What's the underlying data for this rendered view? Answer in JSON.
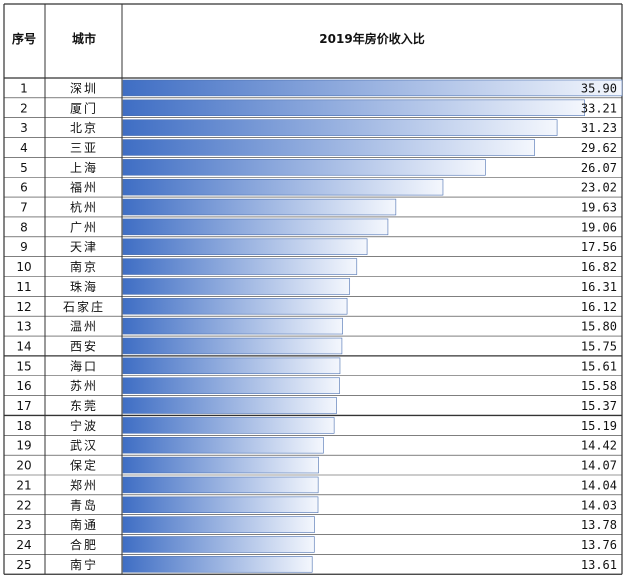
{
  "header": {
    "col_index": "序号",
    "col_city": "城市",
    "col_value": "2019年房价收入比"
  },
  "colors": {
    "bar_dark": "#3f6ec4",
    "bar_light": "#f4f7fd",
    "grid": "#333333"
  },
  "chart_data": {
    "type": "bar",
    "orientation": "horizontal",
    "title": "2019年房价收入比",
    "xlim": [
      0,
      35.9
    ],
    "grid": true,
    "categories": [
      "深圳",
      "厦门",
      "北京",
      "三亚",
      "上海",
      "福州",
      "杭州",
      "广州",
      "天津",
      "南京",
      "珠海",
      "石家庄",
      "温州",
      "西安",
      "海口",
      "苏州",
      "东莞",
      "宁波",
      "武汉",
      "保定",
      "郑州",
      "青岛",
      "南通",
      "合肥",
      "南宁"
    ],
    "index": [
      "1",
      "2",
      "3",
      "4",
      "5",
      "6",
      "7",
      "8",
      "9",
      "10",
      "11",
      "12",
      "13",
      "14",
      "15",
      "16",
      "17",
      "18",
      "19",
      "20",
      "21",
      "22",
      "23",
      "24",
      "25"
    ],
    "values": [
      35.9,
      33.21,
      31.23,
      29.62,
      26.07,
      23.02,
      19.63,
      19.06,
      17.56,
      16.82,
      16.31,
      16.12,
      15.8,
      15.75,
      15.61,
      15.58,
      15.37,
      15.19,
      14.42,
      14.07,
      14.04,
      14.03,
      13.78,
      13.76,
      13.61
    ],
    "value_labels": [
      "35.90",
      "33.21",
      "31.23",
      "29.62",
      "26.07",
      "23.02",
      "19.63",
      "19.06",
      "17.56",
      "16.82",
      "16.31",
      "16.12",
      "15.80",
      "15.75",
      "15.61",
      "15.58",
      "15.37",
      "15.19",
      "14.42",
      "14.07",
      "14.04",
      "14.03",
      "13.78",
      "13.76",
      "13.61"
    ]
  }
}
